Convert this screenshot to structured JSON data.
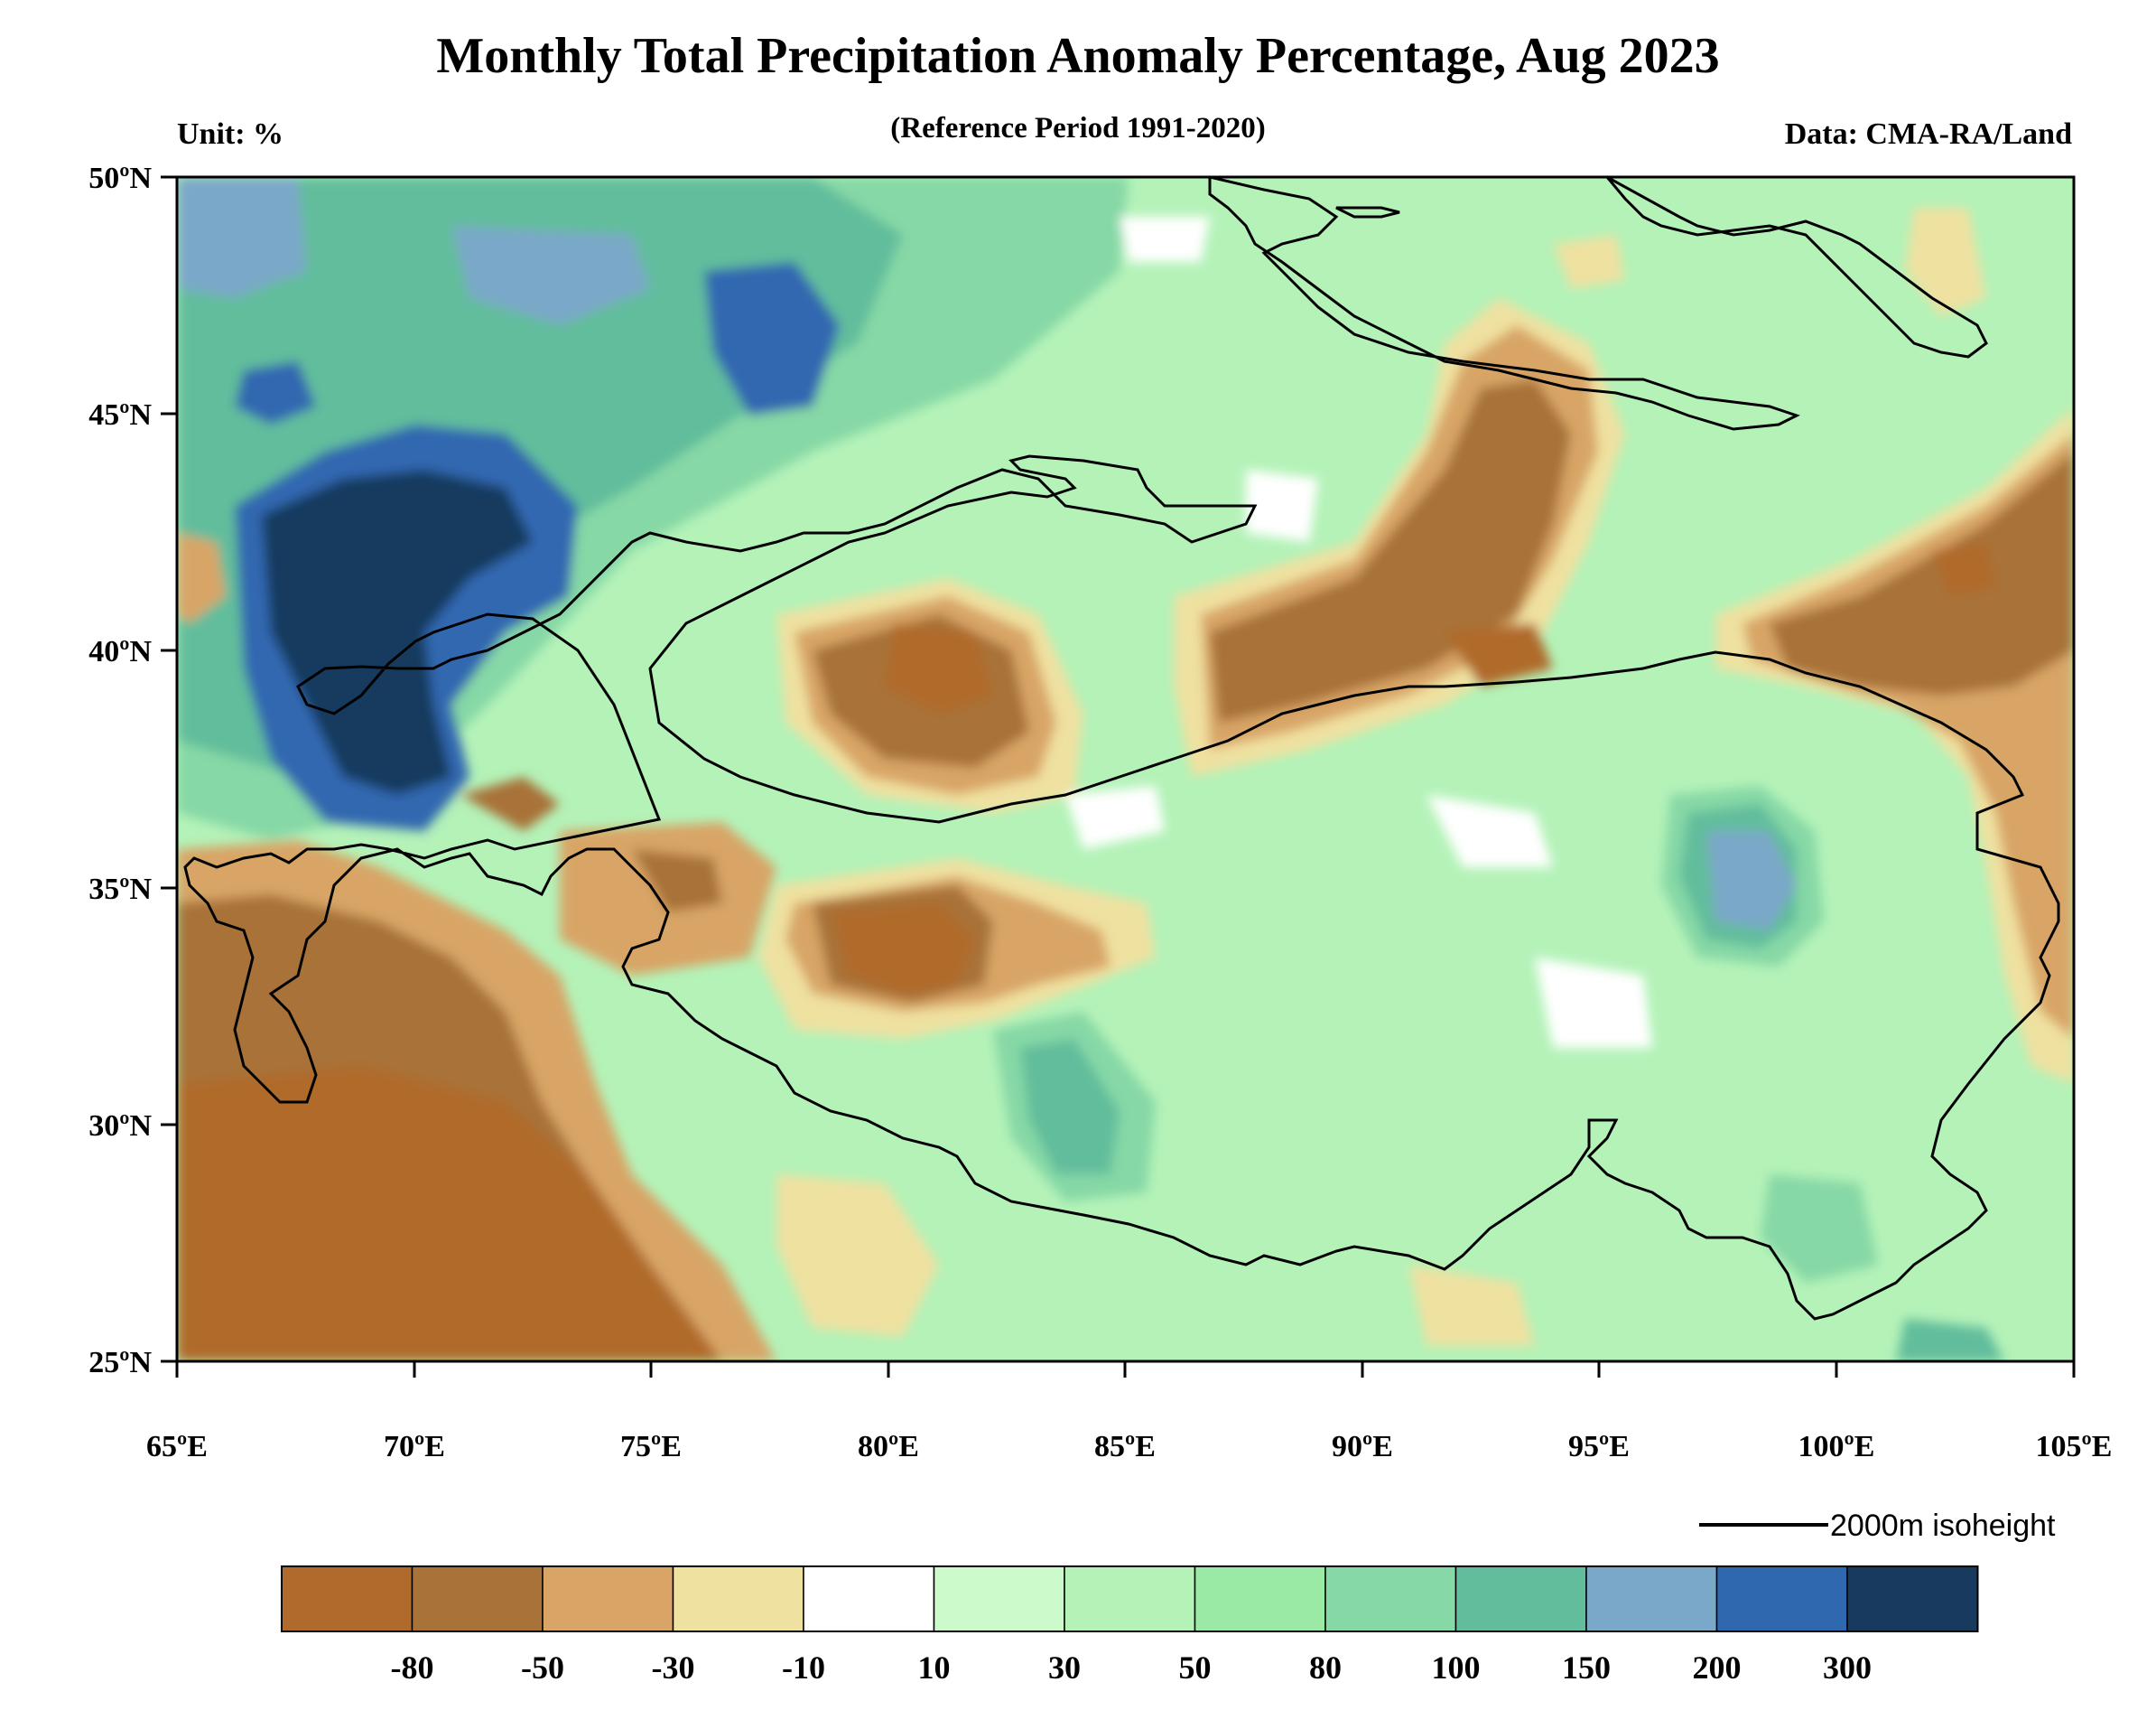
{
  "title": "Monthly Total Precipitation Anomaly Percentage, Aug 2023",
  "subtitle": "(Reference Period 1991-2020)",
  "unit_label": "Unit: %",
  "source_label": "Data: CMA-RA/Land",
  "map": {
    "lon_range": [
      65,
      105
    ],
    "lat_range": [
      25,
      50
    ],
    "lon_ticks": [
      "65ºE",
      "70ºE",
      "75ºE",
      "80ºE",
      "85ºE",
      "90ºE",
      "95ºE",
      "100ºE",
      "105ºE"
    ],
    "lat_ticks": [
      "25ºN",
      "30ºN",
      "35ºN",
      "40ºN",
      "45ºN",
      "50ºN"
    ],
    "isoheight_legend": "2000m isoheight"
  },
  "colorbar": {
    "colors": [
      "#b06a2c",
      "#a87238",
      "#d8a566",
      "#efe1a0",
      "#ffffff",
      "#ccfacb",
      "#b4f2b8",
      "#9aeaa6",
      "#86d8a6",
      "#62bd9c",
      "#7aa8c8",
      "#3068b0",
      "#173a5e"
    ],
    "labels": [
      "-80",
      "-50",
      "-30",
      "-10",
      "10",
      "30",
      "50",
      "80",
      "100",
      "150",
      "200",
      "300"
    ]
  }
}
